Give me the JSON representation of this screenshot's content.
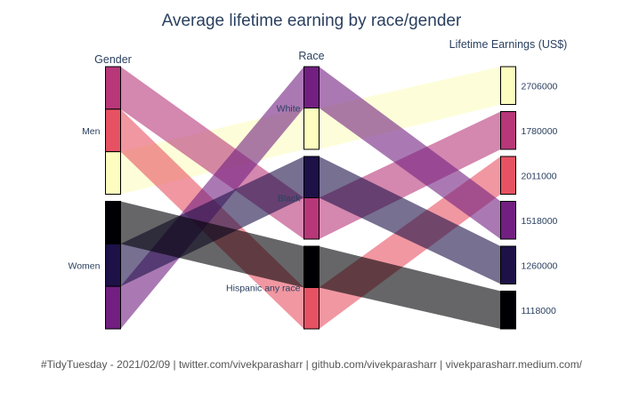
{
  "chart_data": {
    "type": "parallel-categories",
    "title": "Average lifetime earning by race/gender",
    "footer": "#TidyTuesday - 2021/02/09 | twitter.com/vivekparasharr | github.com/vivekparasharr | vivekparasharr.medium.com/",
    "dimensions": [
      {
        "label": "Gender",
        "categories": [
          "Men",
          "Women"
        ],
        "category_labels": [
          "Men",
          "Women"
        ]
      },
      {
        "label": "Race",
        "categories": [
          "White",
          "Black",
          "Hispanic any race"
        ],
        "category_labels": [
          "White",
          "Black",
          "Hispanic any race"
        ]
      },
      {
        "label": "Lifetime Earnings (US$)",
        "categories": [
          "2706000",
          "1780000",
          "2011000",
          "1518000",
          "1260000",
          "1118000"
        ],
        "category_labels": [
          "2706000",
          "1780000",
          "2011000",
          "1518000",
          "1260000",
          "1118000"
        ]
      }
    ],
    "records": [
      {
        "gender": "Men",
        "race": "White",
        "earnings": "2706000",
        "color": "#fcfdbf"
      },
      {
        "gender": "Men",
        "race": "Black",
        "earnings": "1780000",
        "color": "#b73779"
      },
      {
        "gender": "Men",
        "race": "Hispanic any race",
        "earnings": "2011000",
        "color": "#e75263"
      },
      {
        "gender": "Women",
        "race": "White",
        "earnings": "1518000",
        "color": "#721f81"
      },
      {
        "gender": "Women",
        "race": "Black",
        "earnings": "1260000",
        "color": "#1d1147"
      },
      {
        "gender": "Women",
        "race": "Hispanic any race",
        "earnings": "1118000",
        "color": "#000004"
      }
    ]
  }
}
